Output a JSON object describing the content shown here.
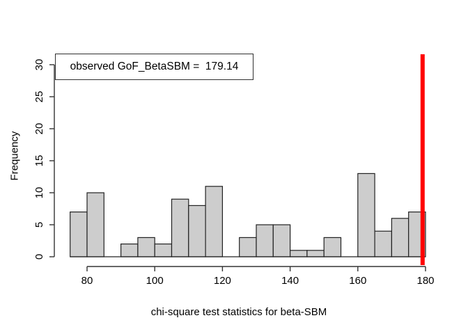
{
  "figure": {
    "background": "#ffffff"
  },
  "axes": {
    "x_label": "chi-square test statistics for beta-SBM",
    "y_label": "Frequency"
  },
  "legend": {
    "text": "observed GoF_BetaSBM =  179.14"
  },
  "chart_data": {
    "type": "bar",
    "subtype": "histogram",
    "title": "",
    "xlabel": "chi-square test statistics for beta-SBM",
    "ylabel": "Frequency",
    "bin_start": 75,
    "bin_width": 5,
    "bin_edges": [
      75,
      80,
      85,
      90,
      95,
      100,
      105,
      110,
      115,
      120,
      125,
      130,
      135,
      140,
      145,
      150,
      155,
      160,
      165,
      170,
      175,
      180
    ],
    "counts": [
      7,
      10,
      0,
      2,
      3,
      2,
      9,
      8,
      11,
      0,
      3,
      5,
      5,
      1,
      1,
      3,
      0,
      13,
      4,
      6,
      7
    ],
    "total_samples": 100,
    "x_ticks": [
      80,
      100,
      120,
      140,
      160,
      180
    ],
    "y_ticks": [
      0,
      5,
      10,
      15,
      20,
      25,
      30
    ],
    "xlim": [
      75,
      180
    ],
    "ylim": [
      0,
      30
    ],
    "grid": false,
    "legend_position": "topleft",
    "legend_text": "observed GoF_BetaSBM =  179.14",
    "bar_fill": "#cdcdcd",
    "bar_border": "#222222",
    "axis_color": "#333333",
    "observed_line": {
      "value": 179.14,
      "color": "#ff0000"
    }
  }
}
